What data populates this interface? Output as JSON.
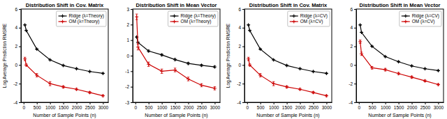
{
  "chart_data": [
    {
      "type": "line",
      "title": "Distribution Shift in Cov. Matrix",
      "xlabel": "Number of Sample Points (n)",
      "ylabel": "Log Average Prediction RMSRE",
      "x": [
        50,
        100,
        500,
        1000,
        1500,
        2000,
        2500,
        3000
      ],
      "xlim": [
        -100,
        3200
      ],
      "xticks": [
        0,
        500,
        1000,
        1500,
        2000,
        2500,
        3000
      ],
      "ylim": [
        -4,
        6
      ],
      "yticks": [
        -4,
        -2,
        0,
        2,
        4,
        6
      ],
      "grid": false,
      "legend": "upper right",
      "series": [
        {
          "name": "Ridge (λ=Theory)",
          "color": "#000000",
          "marker": "plus",
          "line_style": "solid",
          "values": [
            4.3,
            3.7,
            1.7,
            0.55,
            -0.05,
            -0.4,
            -0.7,
            -0.9
          ],
          "errors": [
            0.04,
            0.04,
            0.06,
            0.06,
            0.07,
            0.07,
            0.06,
            0.06
          ]
        },
        {
          "name": "OM (λ=Theory)",
          "color": "#cc0000",
          "marker": "plus",
          "line_style": "solid",
          "values": [
            0.65,
            0.0,
            -1.1,
            -2.0,
            -2.35,
            -2.6,
            -2.95,
            -3.3
          ],
          "errors": [
            0.18,
            0.12,
            0.18,
            0.22,
            0.12,
            0.1,
            0.1,
            0.1
          ]
        }
      ]
    },
    {
      "type": "line",
      "title": "Distribution Shift in Mean Vector",
      "xlabel": "Number of Sample Points (n)",
      "x": [
        50,
        100,
        500,
        1000,
        1500,
        2000,
        2500,
        3000
      ],
      "xlim": [
        -100,
        3200
      ],
      "xticks": [
        0,
        500,
        1000,
        1500,
        2000,
        2500,
        3000
      ],
      "ylim": [
        -3,
        3
      ],
      "yticks": [
        -3,
        -2,
        -1,
        0,
        1,
        2,
        3
      ],
      "grid": false,
      "legend": "upper right",
      "series": [
        {
          "name": "Ridge (λ=Theory)",
          "color": "#000000",
          "marker": "plus",
          "line_style": "solid",
          "values": [
            1.2,
            0.85,
            0.3,
            0.05,
            -0.25,
            -0.5,
            -0.62,
            -0.72
          ],
          "errors": [
            0.04,
            0.04,
            0.06,
            0.06,
            0.07,
            0.07,
            0.06,
            0.06
          ]
        },
        {
          "name": "OM (λ=Theory)",
          "color": "#cc0000",
          "marker": "plus",
          "line_style": "solid",
          "values": [
            2.5,
            0.55,
            -0.55,
            -1.0,
            -0.92,
            -1.5,
            -1.9,
            -2.1
          ],
          "errors": [
            0.18,
            0.18,
            0.14,
            0.14,
            0.12,
            0.12,
            0.1,
            0.1
          ]
        }
      ]
    },
    {
      "type": "line",
      "title": "Distribution Shift in Cov. Matrix",
      "xlabel": "Number of Sample Points (n)",
      "ylabel": "Log Average Prediction RMSRE",
      "x": [
        50,
        100,
        500,
        1000,
        1500,
        2000,
        2500,
        3000
      ],
      "xlim": [
        -100,
        3200
      ],
      "xticks": [
        0,
        500,
        1000,
        1500,
        2000,
        2500,
        3000
      ],
      "ylim": [
        -4,
        6
      ],
      "yticks": [
        -4,
        -2,
        0,
        2,
        4,
        6
      ],
      "grid": false,
      "legend": "upper right",
      "series": [
        {
          "name": "Ridge (λ=CV)",
          "color": "#000000",
          "marker": "plus",
          "line_style": "solid",
          "values": [
            4.3,
            3.7,
            1.7,
            0.55,
            -0.05,
            -0.4,
            -0.7,
            -0.9
          ],
          "errors": [
            0.04,
            0.04,
            0.06,
            0.06,
            0.07,
            0.07,
            0.06,
            0.06
          ]
        },
        {
          "name": "OM (λ=CV)",
          "color": "#cc0000",
          "marker": "plus",
          "line_style": "solid",
          "values": [
            0.65,
            0.0,
            -1.1,
            -2.0,
            -2.35,
            -2.6,
            -2.95,
            -3.3
          ],
          "errors": [
            0.18,
            0.12,
            0.18,
            0.22,
            0.12,
            0.1,
            0.1,
            0.1
          ]
        }
      ]
    },
    {
      "type": "line",
      "title": "Distribution Shift in Mean Vector",
      "xlabel": "Number of Sample Points (n)",
      "x": [
        50,
        100,
        500,
        1000,
        1500,
        2000,
        2500,
        3000
      ],
      "xlim": [
        -100,
        3200
      ],
      "xticks": [
        0,
        500,
        1000,
        1500,
        2000,
        2500,
        3000
      ],
      "ylim": [
        -4,
        6
      ],
      "yticks": [
        -4,
        -2,
        0,
        2,
        4,
        6
      ],
      "grid": false,
      "legend": "upper right",
      "series": [
        {
          "name": "Ridge (λ=CV)",
          "color": "#000000",
          "marker": "plus",
          "line_style": "solid",
          "values": [
            4.3,
            3.5,
            2.0,
            0.9,
            0.35,
            -0.1,
            -0.4,
            -0.6
          ],
          "errors": [
            0.04,
            0.04,
            0.06,
            0.06,
            0.07,
            0.07,
            0.06,
            0.06
          ]
        },
        {
          "name": "OM (λ=CV)",
          "color": "#cc0000",
          "marker": "plus",
          "line_style": "solid",
          "values": [
            2.5,
            1.2,
            -0.3,
            -0.5,
            -0.92,
            -1.3,
            -1.7,
            -2.1
          ],
          "errors": [
            0.18,
            0.18,
            0.14,
            0.14,
            0.12,
            0.12,
            0.1,
            0.1
          ]
        }
      ]
    }
  ]
}
